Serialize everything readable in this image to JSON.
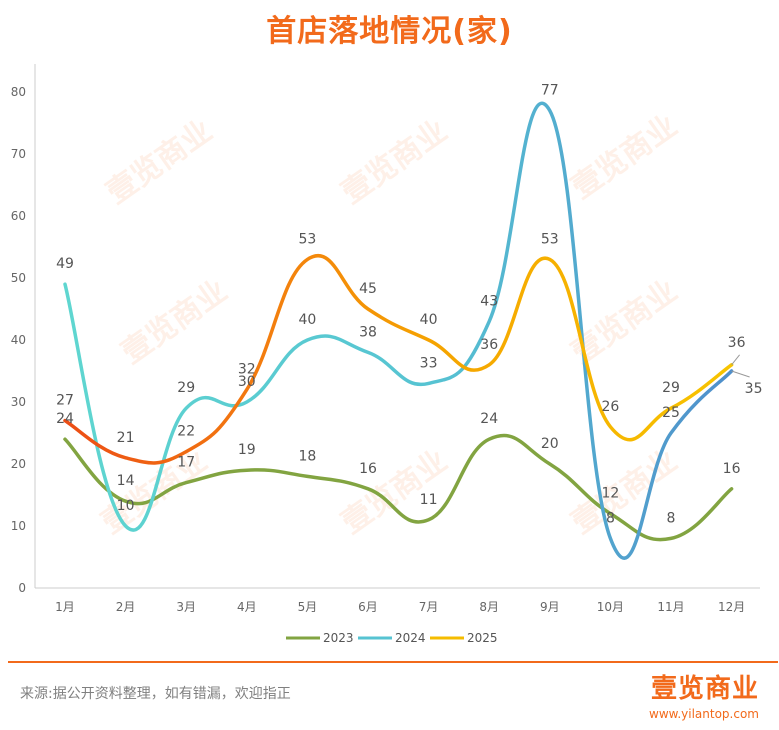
{
  "title": "首店落地情况(家)",
  "source": "来源:据公开资料整理，如有错漏，欢迎指正",
  "brand": {
    "logo": "壹览商业",
    "url": "www.yilantop.com"
  },
  "watermark": "壹览商业",
  "chart_data": {
    "type": "line",
    "title": "首店落地情况(家)",
    "categories": [
      "1月",
      "2月",
      "3月",
      "4月",
      "5月",
      "6月",
      "7月",
      "8月",
      "9月",
      "10月",
      "11月",
      "12月"
    ],
    "yticks": [
      0,
      10,
      20,
      30,
      40,
      50,
      60,
      70,
      80
    ],
    "ylim": [
      0,
      80
    ],
    "grid": false,
    "legend_position": "bottom",
    "series": [
      {
        "name": "2023",
        "color": "#82a441",
        "values": [
          24,
          14,
          17,
          19,
          18,
          16,
          11,
          24,
          20,
          12,
          8,
          16
        ]
      },
      {
        "name": "2024",
        "color": "#56c3d2",
        "color_end": "#4f8fcb",
        "values": [
          49,
          10,
          29,
          30,
          40,
          38,
          33,
          43,
          77,
          8,
          25,
          35
        ]
      },
      {
        "name": "2025",
        "color": "#f5bc00",
        "color_start": "#ec4d15",
        "values": [
          27,
          21,
          22,
          32,
          53,
          45,
          40,
          36,
          53,
          26,
          29,
          36
        ]
      }
    ]
  }
}
